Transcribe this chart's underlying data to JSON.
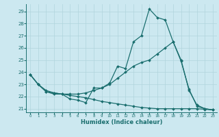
{
  "xlabel": "Humidex (Indice chaleur)",
  "bg_color": "#cce8f0",
  "grid_color": "#b0d4dc",
  "line_color": "#1a6e6e",
  "xlim_min": -0.5,
  "xlim_max": 23.5,
  "ylim_min": 20.7,
  "ylim_max": 29.6,
  "yticks": [
    21,
    22,
    23,
    24,
    25,
    26,
    27,
    28,
    29
  ],
  "xticks": [
    0,
    1,
    2,
    3,
    4,
    5,
    6,
    7,
    8,
    9,
    10,
    11,
    12,
    13,
    14,
    15,
    16,
    17,
    18,
    19,
    20,
    21,
    22,
    23
  ],
  "curves": [
    {
      "x": [
        0,
        1,
        2,
        3,
        4,
        5,
        6,
        7,
        8,
        9,
        10,
        11,
        12,
        13,
        14,
        15,
        16,
        17,
        18,
        19,
        20,
        21,
        22,
        23
      ],
      "y": [
        23.8,
        23.0,
        22.4,
        22.2,
        22.2,
        21.8,
        21.7,
        21.5,
        22.7,
        22.7,
        23.1,
        24.5,
        24.3,
        26.5,
        27.0,
        29.2,
        28.5,
        28.3,
        26.5,
        24.9,
        22.6,
        21.2,
        21.0,
        20.9
      ]
    },
    {
      "x": [
        0,
        1,
        2,
        3,
        4,
        5,
        6,
        7,
        8,
        9,
        10,
        11,
        12,
        13,
        14,
        15,
        16,
        17,
        18,
        19,
        20,
        21,
        22,
        23
      ],
      "y": [
        23.8,
        23.0,
        22.5,
        22.3,
        22.2,
        22.1,
        22.0,
        21.9,
        21.75,
        21.6,
        21.5,
        21.4,
        21.3,
        21.2,
        21.1,
        21.05,
        21.0,
        21.0,
        21.0,
        21.0,
        21.0,
        21.0,
        20.95,
        20.9
      ]
    },
    {
      "x": [
        0,
        1,
        2,
        3,
        4,
        5,
        6,
        7,
        8,
        9,
        10,
        11,
        12,
        13,
        14,
        15,
        16,
        17,
        18,
        19,
        20,
        21,
        22,
        23
      ],
      "y": [
        23.8,
        23.0,
        22.4,
        22.3,
        22.2,
        22.2,
        22.2,
        22.3,
        22.5,
        22.7,
        23.0,
        23.5,
        24.0,
        24.5,
        24.8,
        25.0,
        25.5,
        26.0,
        26.5,
        25.0,
        22.5,
        21.3,
        21.0,
        20.9
      ]
    }
  ]
}
